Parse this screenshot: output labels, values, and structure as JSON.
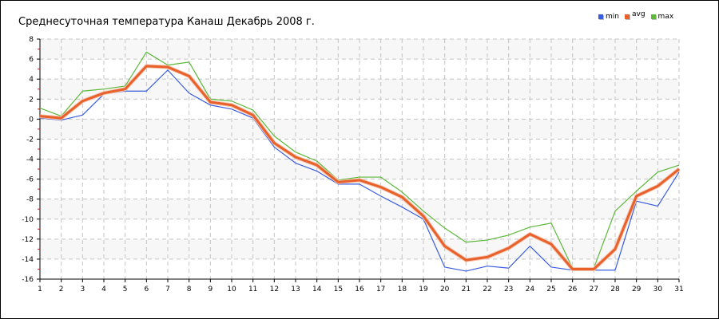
{
  "chart_data": {
    "type": "line",
    "title": "Среднесуточная температура Канаш  Декабрь 2008 г.",
    "xlabel": "",
    "ylabel": "",
    "x": [
      1,
      2,
      3,
      4,
      5,
      6,
      7,
      8,
      9,
      10,
      11,
      12,
      13,
      14,
      15,
      16,
      17,
      18,
      19,
      20,
      21,
      22,
      23,
      24,
      25,
      26,
      27,
      28,
      29,
      30,
      31
    ],
    "xlim": [
      1,
      31
    ],
    "ylim": [
      -16,
      8
    ],
    "yticks": [
      8,
      6,
      4,
      2,
      0,
      -2,
      -4,
      -6,
      -8,
      -10,
      -12,
      -14,
      -16
    ],
    "grid": true,
    "legend_position": "top-right",
    "series": [
      {
        "name": "min",
        "color": "#3a5de0",
        "values": [
          0.1,
          -0.1,
          0.4,
          2.5,
          2.8,
          2.8,
          4.9,
          2.6,
          1.4,
          1.0,
          0.1,
          -2.8,
          -4.4,
          -5.2,
          -6.5,
          -6.5,
          -7.7,
          -8.8,
          -10.0,
          -14.8,
          -15.2,
          -14.7,
          -14.9,
          -12.7,
          -14.8,
          -15.1,
          -15.1,
          -15.1,
          -8.2,
          -8.7,
          -5.3
        ]
      },
      {
        "name": "avg",
        "color": "#e8602a",
        "values": [
          0.3,
          0.1,
          1.8,
          2.6,
          3.0,
          5.3,
          5.2,
          4.3,
          1.7,
          1.4,
          0.4,
          -2.4,
          -3.8,
          -4.6,
          -6.3,
          -6.1,
          -6.8,
          -7.8,
          -9.7,
          -12.7,
          -14.1,
          -13.8,
          -12.9,
          -11.5,
          -12.5,
          -15.0,
          -15.0,
          -13.0,
          -7.7,
          -6.7,
          -5.0
        ]
      },
      {
        "name": "max",
        "color": "#5db83a",
        "values": [
          1.1,
          0.3,
          2.8,
          3.0,
          3.3,
          6.7,
          5.4,
          5.7,
          2.0,
          1.8,
          0.9,
          -1.7,
          -3.3,
          -4.2,
          -6.1,
          -5.8,
          -5.8,
          -7.3,
          -9.2,
          -10.9,
          -12.3,
          -12.1,
          -11.6,
          -10.8,
          -10.4,
          -14.9,
          -14.9,
          -9.2,
          -7.2,
          -5.3,
          -4.6
        ]
      }
    ]
  }
}
